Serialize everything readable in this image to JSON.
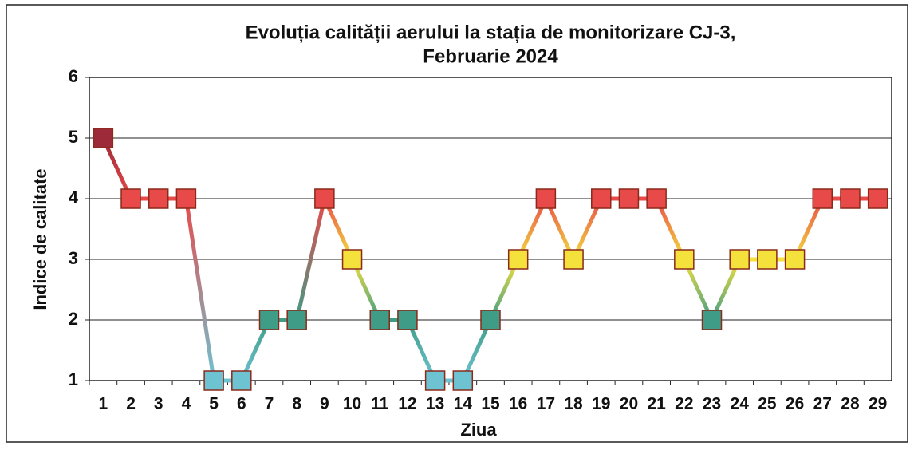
{
  "chart_data": {
    "type": "line",
    "title": [
      "Evoluția calității aerului la stația de monitorizare CJ-3,",
      "Februarie 2024"
    ],
    "x_label": "Ziua",
    "y_label": "Indice de calitate",
    "categories": [
      "1",
      "2",
      "3",
      "4",
      "5",
      "6",
      "7",
      "8",
      "9",
      "10",
      "11",
      "12",
      "13",
      "14",
      "15",
      "16",
      "17",
      "18",
      "19",
      "20",
      "21",
      "22",
      "23",
      "24",
      "25",
      "26",
      "27",
      "28",
      "29"
    ],
    "series": [
      {
        "name": "Indice de calitate",
        "values": [
          5,
          4,
          4,
          4,
          1,
          1,
          2,
          2,
          4,
          3,
          2,
          2,
          1,
          1,
          2,
          3,
          4,
          3,
          4,
          4,
          4,
          3,
          2,
          3,
          3,
          3,
          4,
          4,
          4
        ]
      }
    ],
    "level_colors": {
      "1": "#6ec3d2",
      "2": "#3f9c86",
      "3": "#f4e13c",
      "4": "#e84a4a",
      "5": "#9c2a38"
    },
    "ylim": [
      1,
      6
    ],
    "yticks": [
      1,
      2,
      3,
      4,
      5,
      6
    ],
    "grid": true
  }
}
